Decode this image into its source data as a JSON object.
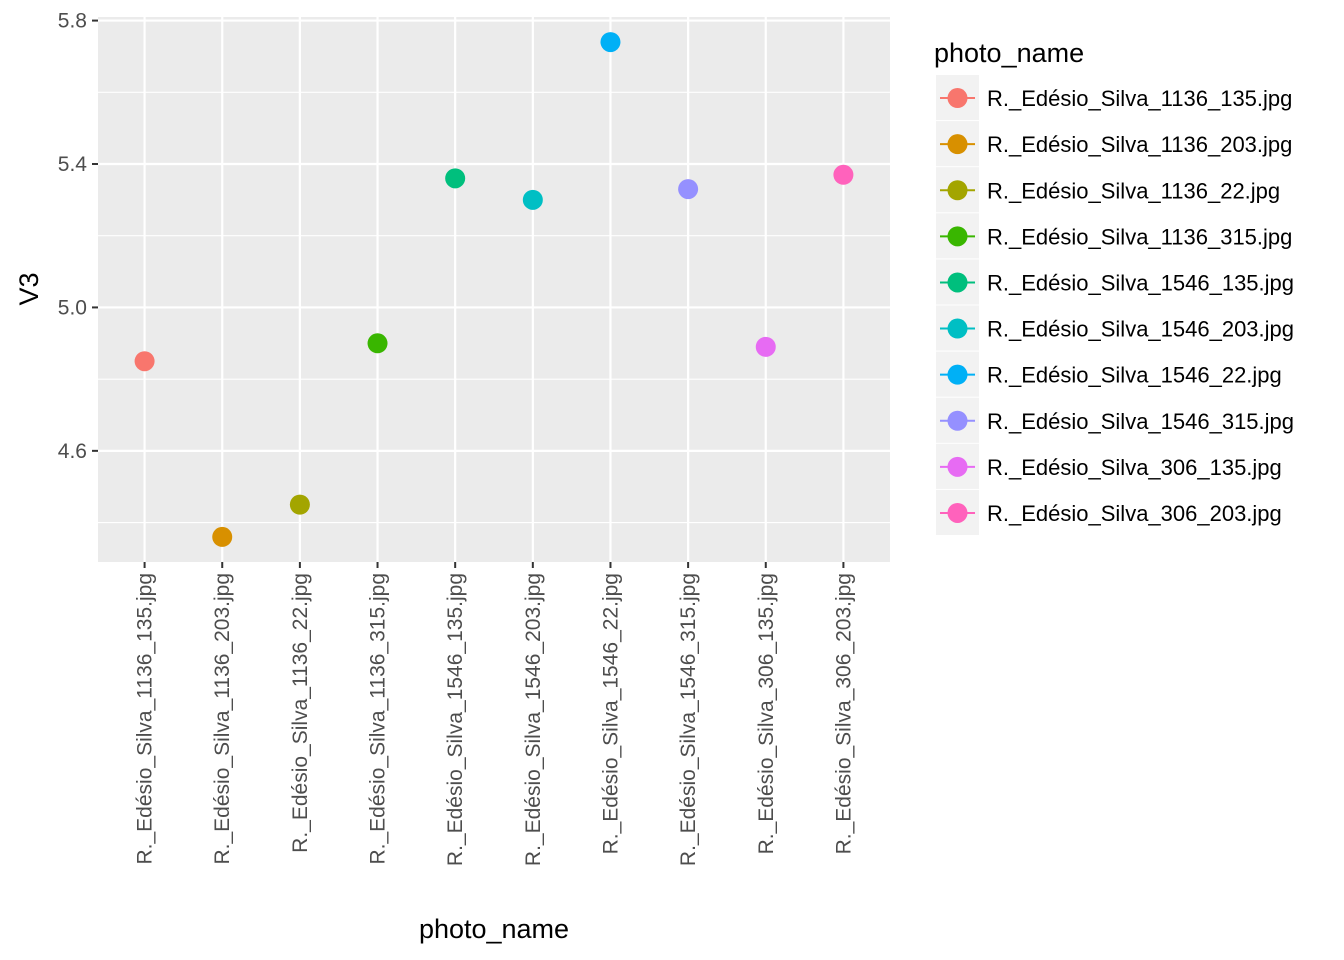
{
  "chart_data": {
    "type": "scatter",
    "title": "",
    "xlabel": "photo_name",
    "ylabel": "V3",
    "categories": [
      "R._Edésio_Silva_1136_135.jpg",
      "R._Edésio_Silva_1136_203.jpg",
      "R._Edésio_Silva_1136_22.jpg",
      "R._Edésio_Silva_1136_315.jpg",
      "R._Edésio_Silva_1546_135.jpg",
      "R._Edésio_Silva_1546_203.jpg",
      "R._Edésio_Silva_1546_22.jpg",
      "R._Edésio_Silva_1546_315.jpg",
      "R._Edésio_Silva_306_135.jpg",
      "R._Edésio_Silva_306_203.jpg"
    ],
    "values": [
      4.85,
      4.36,
      4.45,
      4.9,
      5.36,
      5.3,
      5.74,
      5.33,
      4.89,
      5.37
    ],
    "colors": [
      "#F8766D",
      "#D89000",
      "#A3A500",
      "#39B600",
      "#00BF7D",
      "#00BFC4",
      "#00B0F6",
      "#9590FF",
      "#E76BF3",
      "#FF62BC"
    ],
    "ylim": [
      4.29,
      5.81
    ],
    "yticks": [
      "4.6",
      "5.0",
      "5.4",
      "5.8"
    ],
    "ytick_values": [
      4.6,
      5.0,
      5.4,
      5.8
    ],
    "grid": true,
    "panel_color": "#EBEBEB",
    "legend": {
      "title": "photo_name",
      "position": "right"
    }
  }
}
